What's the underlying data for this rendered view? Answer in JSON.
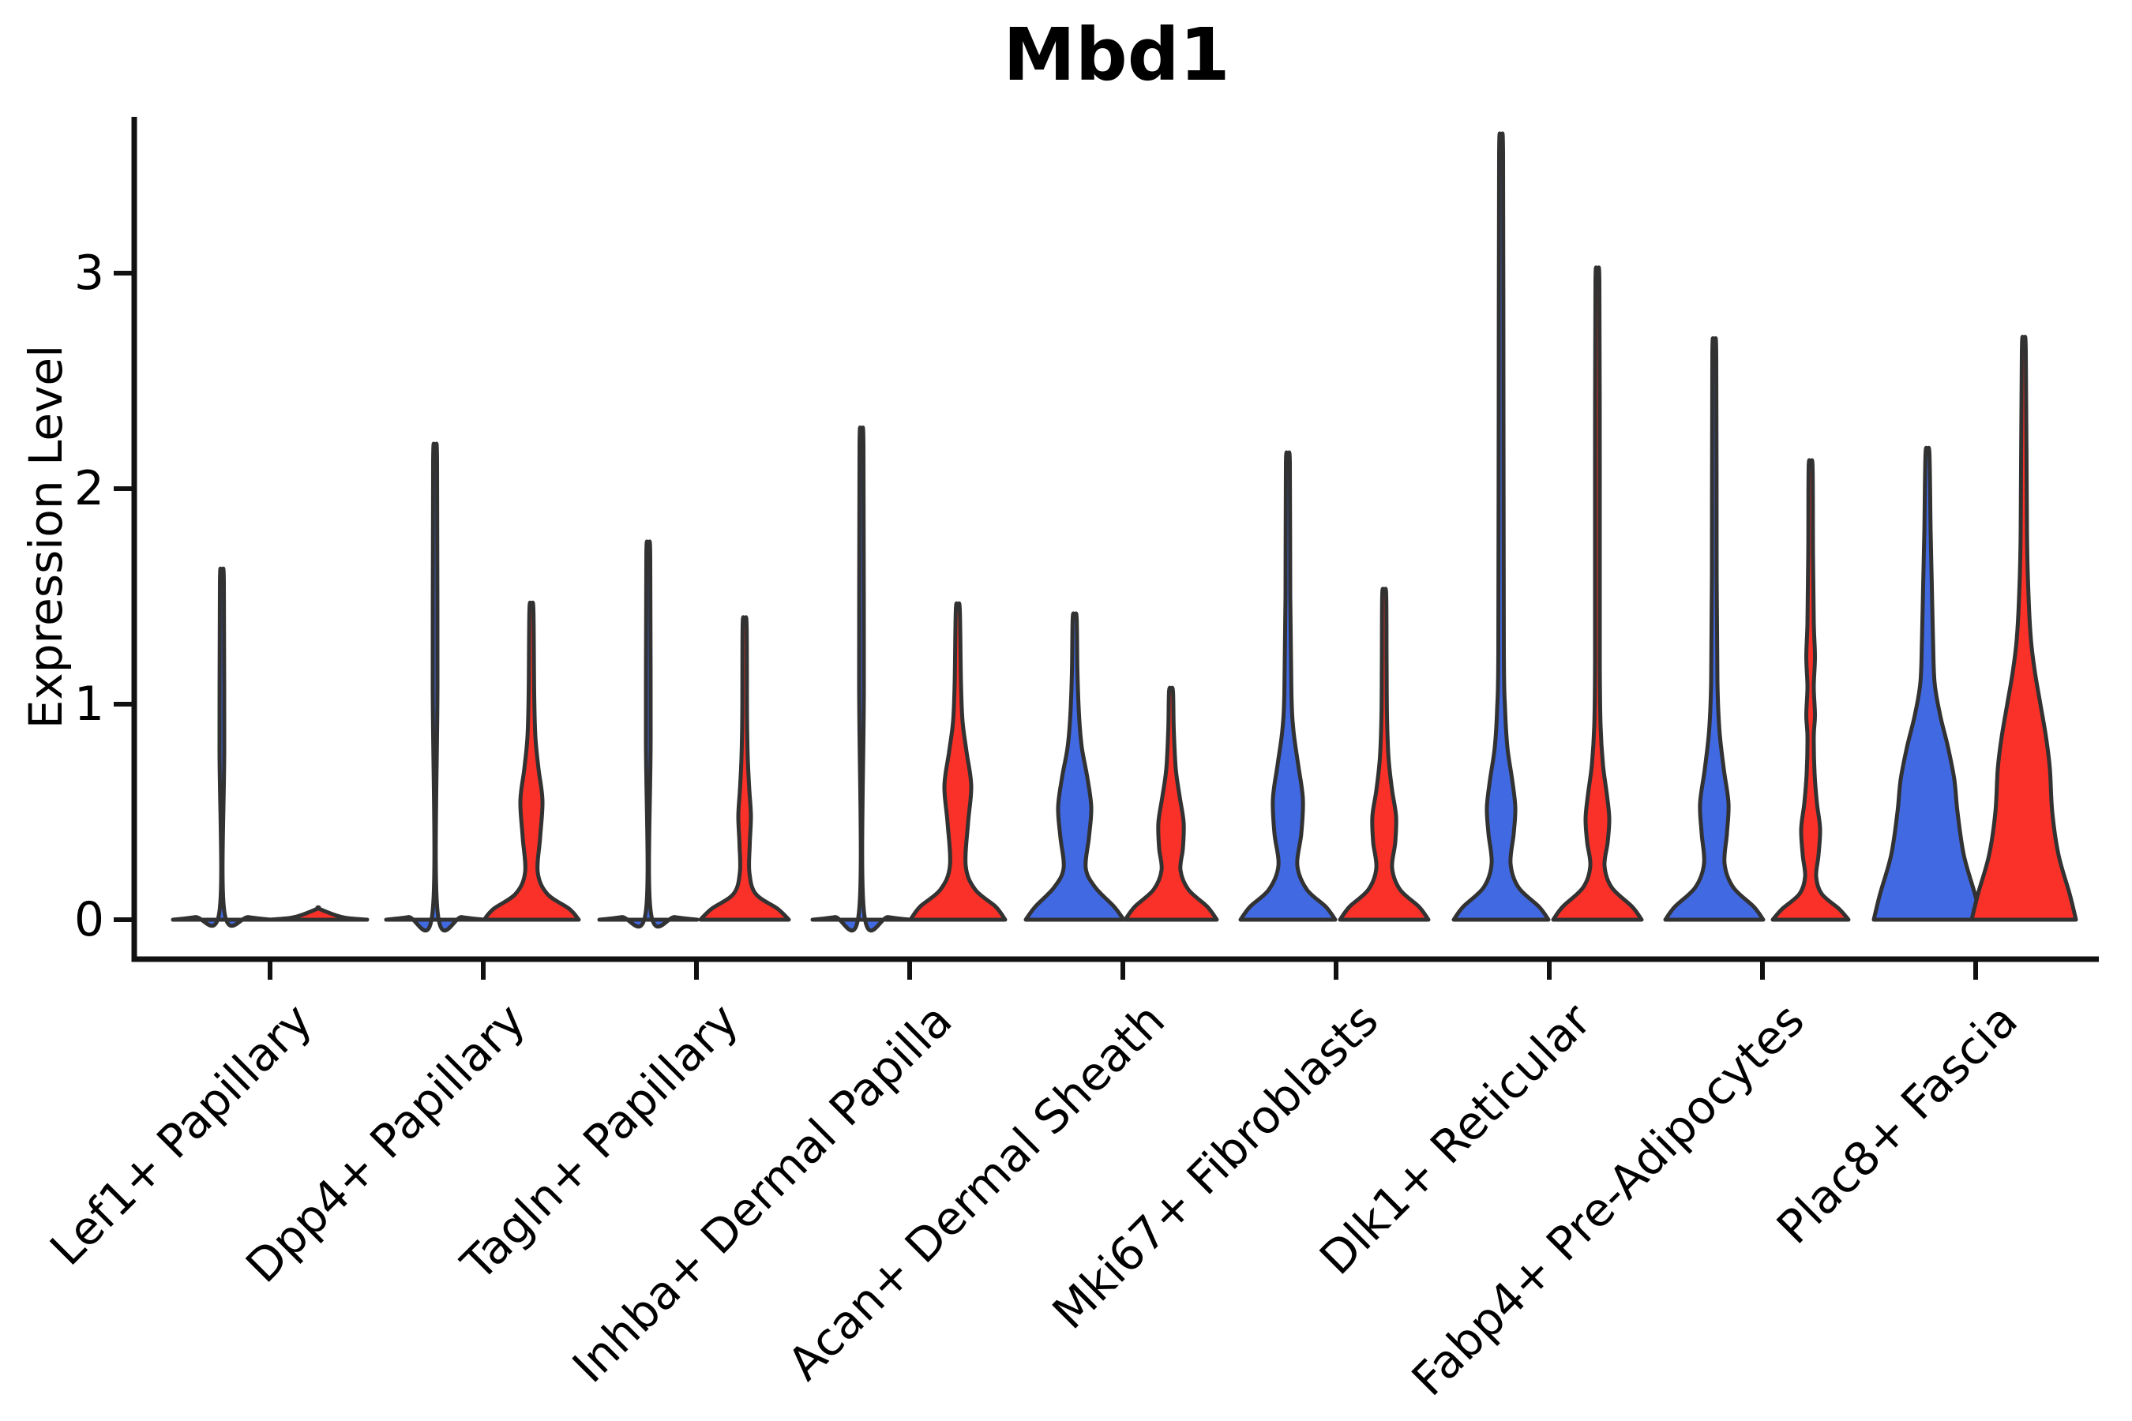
{
  "chart_data": {
    "type": "violin",
    "title": "Mbd1",
    "xlabel": "",
    "ylabel": "Expression Level",
    "yticks": [
      0,
      1,
      2,
      3
    ],
    "ylim": [
      -0.18,
      3.73
    ],
    "grid": false,
    "legend": "none",
    "categories": [
      "Lef1+ Papillary",
      "Dpp4+ Papillary",
      "Tagln+ Papillary",
      "Inhba+ Dermal Papilla",
      "Acan+ Dermal Sheath",
      "Mki67+ Fibroblasts",
      "Dlk1+ Reticular",
      "Fabp4+ Pre-Adipocytes",
      "Plac8+ Fascia"
    ],
    "series": [
      {
        "side": "blue",
        "color": "#4169E1"
      },
      {
        "side": "red",
        "color": "#F93128"
      }
    ],
    "violins": [
      {
        "category": "Lef1+ Papillary",
        "blue": {
          "max": 1.57,
          "profile": [
            [
              0,
              62
            ],
            [
              0.012,
              34
            ],
            [
              0.035,
              3.2
            ],
            [
              0.8,
              3
            ],
            [
              1.57,
              2.5
            ]
          ]
        },
        "red": {
          "max": 0.05,
          "profile": [
            [
              0,
              62
            ],
            [
              0.012,
              30
            ],
            [
              0.05,
              1.5
            ]
          ]
        }
      },
      {
        "category": "Dpp4+ Papillary",
        "blue": {
          "max": 2.13,
          "profile": [
            [
              0,
              62
            ],
            [
              0.012,
              34
            ],
            [
              0.035,
              3.2
            ],
            [
              1.1,
              3
            ],
            [
              2.13,
              2.5
            ]
          ]
        },
        "red": {
          "max": 1.44,
          "profile": [
            [
              0,
              60
            ],
            [
              0.05,
              48
            ],
            [
              0.12,
              20
            ],
            [
              0.22,
              8
            ],
            [
              0.38,
              11
            ],
            [
              0.55,
              14
            ],
            [
              0.7,
              9
            ],
            [
              0.85,
              5
            ],
            [
              1.05,
              3.5
            ],
            [
              1.44,
              2.5
            ]
          ]
        }
      },
      {
        "category": "Tagln+ Papillary",
        "blue": {
          "max": 1.69,
          "profile": [
            [
              0,
              62
            ],
            [
              0.012,
              34
            ],
            [
              0.035,
              3.2
            ],
            [
              0.85,
              3
            ],
            [
              1.69,
              2.5
            ]
          ]
        },
        "red": {
          "max": 1.37,
          "profile": [
            [
              0,
              56
            ],
            [
              0.05,
              42
            ],
            [
              0.12,
              14
            ],
            [
              0.22,
              6
            ],
            [
              0.35,
              6.5
            ],
            [
              0.48,
              8
            ],
            [
              0.6,
              6
            ],
            [
              0.75,
              4
            ],
            [
              0.95,
              3
            ],
            [
              1.37,
              2.5
            ]
          ]
        }
      },
      {
        "category": "Inhba+ Dermal Papilla",
        "blue": {
          "max": 2.2,
          "profile": [
            [
              0,
              62
            ],
            [
              0.012,
              34
            ],
            [
              0.035,
              3.2
            ],
            [
              1.1,
              3
            ],
            [
              2.2,
              2.5
            ]
          ]
        },
        "red": {
          "max": 1.44,
          "profile": [
            [
              0,
              60
            ],
            [
              0.06,
              48
            ],
            [
              0.14,
              22
            ],
            [
              0.25,
              10
            ],
            [
              0.45,
              13
            ],
            [
              0.62,
              17
            ],
            [
              0.78,
              11
            ],
            [
              0.92,
              6
            ],
            [
              1.1,
              4
            ],
            [
              1.44,
              2.5
            ]
          ]
        }
      },
      {
        "category": "Acan+ Dermal Sheath",
        "blue": {
          "max": 1.4,
          "profile": [
            [
              0,
              62
            ],
            [
              0.06,
              50
            ],
            [
              0.15,
              26
            ],
            [
              0.24,
              14
            ],
            [
              0.38,
              18
            ],
            [
              0.52,
              21
            ],
            [
              0.66,
              16
            ],
            [
              0.8,
              9
            ],
            [
              0.95,
              5.5
            ],
            [
              1.15,
              3.5
            ],
            [
              1.4,
              2.5
            ]
          ]
        },
        "red": {
          "max": 1.06,
          "profile": [
            [
              0,
              58
            ],
            [
              0.06,
              46
            ],
            [
              0.14,
              22
            ],
            [
              0.23,
              12
            ],
            [
              0.33,
              15
            ],
            [
              0.45,
              16
            ],
            [
              0.57,
              11
            ],
            [
              0.7,
              6
            ],
            [
              0.88,
              3.5
            ],
            [
              1.06,
              2.5
            ]
          ]
        }
      },
      {
        "category": "Mki67+ Fibroblasts",
        "blue": {
          "max": 2.12,
          "profile": [
            [
              0,
              60
            ],
            [
              0.06,
              48
            ],
            [
              0.14,
              24
            ],
            [
              0.25,
              12
            ],
            [
              0.4,
              17
            ],
            [
              0.56,
              19
            ],
            [
              0.72,
              13
            ],
            [
              0.88,
              7
            ],
            [
              1.05,
              4.5
            ],
            [
              1.5,
              3
            ],
            [
              2.12,
              2.5
            ]
          ]
        },
        "red": {
          "max": 1.51,
          "profile": [
            [
              0,
              56
            ],
            [
              0.06,
              44
            ],
            [
              0.14,
              20
            ],
            [
              0.24,
              10
            ],
            [
              0.36,
              14
            ],
            [
              0.48,
              15
            ],
            [
              0.6,
              10
            ],
            [
              0.75,
              5.5
            ],
            [
              0.95,
              3.5
            ],
            [
              1.2,
              3
            ],
            [
              1.51,
              2.5
            ]
          ]
        }
      },
      {
        "category": "Dlk1+ Reticular",
        "blue": {
          "max": 3.56,
          "profile": [
            [
              0,
              60
            ],
            [
              0.06,
              48
            ],
            [
              0.15,
              22
            ],
            [
              0.26,
              12
            ],
            [
              0.4,
              16
            ],
            [
              0.52,
              18
            ],
            [
              0.65,
              14
            ],
            [
              0.8,
              8
            ],
            [
              0.98,
              5
            ],
            [
              1.25,
              3.5
            ],
            [
              2.4,
              3
            ],
            [
              3.56,
              2.5
            ]
          ]
        },
        "red": {
          "max": 2.96,
          "profile": [
            [
              0,
              56
            ],
            [
              0.06,
              44
            ],
            [
              0.15,
              18
            ],
            [
              0.25,
              9
            ],
            [
              0.36,
              13
            ],
            [
              0.47,
              15
            ],
            [
              0.58,
              12
            ],
            [
              0.72,
              7
            ],
            [
              0.9,
              4
            ],
            [
              1.2,
              3
            ],
            [
              2.1,
              3
            ],
            [
              2.96,
              2.5
            ]
          ]
        }
      },
      {
        "category": "Fabp4+ Pre-Adipocytes",
        "blue": {
          "max": 2.62,
          "profile": [
            [
              0,
              62
            ],
            [
              0.06,
              50
            ],
            [
              0.15,
              24
            ],
            [
              0.26,
              13
            ],
            [
              0.4,
              16
            ],
            [
              0.54,
              18
            ],
            [
              0.7,
              12
            ],
            [
              0.88,
              6.5
            ],
            [
              1.1,
              4
            ],
            [
              1.6,
              3
            ],
            [
              2.62,
              2.5
            ]
          ]
        },
        "red": {
          "max": 2.1,
          "profile": [
            [
              0,
              48
            ],
            [
              0.05,
              36
            ],
            [
              0.12,
              14
            ],
            [
              0.2,
              7
            ],
            [
              0.3,
              10
            ],
            [
              0.42,
              12
            ],
            [
              0.54,
              8
            ],
            [
              0.68,
              5
            ],
            [
              0.85,
              4
            ],
            [
              0.95,
              5.5
            ],
            [
              1.08,
              4
            ],
            [
              1.22,
              5.5
            ],
            [
              1.38,
              4
            ],
            [
              1.7,
              3
            ],
            [
              2.1,
              2.5
            ]
          ]
        }
      },
      {
        "category": "Plac8+ Fascia",
        "blue": {
          "max": 2.16,
          "profile": [
            [
              0,
              68
            ],
            [
              0.12,
              60
            ],
            [
              0.3,
              46
            ],
            [
              0.5,
              38
            ],
            [
              0.65,
              34
            ],
            [
              0.8,
              26
            ],
            [
              0.95,
              16
            ],
            [
              1.1,
              9
            ],
            [
              1.3,
              7
            ],
            [
              1.55,
              5.5
            ],
            [
              1.8,
              4
            ],
            [
              2.16,
              2.5
            ]
          ]
        },
        "red": {
          "max": 2.64,
          "profile": [
            [
              0,
              66
            ],
            [
              0.12,
              58
            ],
            [
              0.3,
              44
            ],
            [
              0.5,
              36
            ],
            [
              0.7,
              33
            ],
            [
              0.85,
              28
            ],
            [
              1.0,
              21
            ],
            [
              1.15,
              14
            ],
            [
              1.3,
              9
            ],
            [
              1.5,
              6
            ],
            [
              1.8,
              4
            ],
            [
              2.64,
              2.5
            ]
          ]
        }
      }
    ]
  },
  "colors": {
    "background": "#ffffff",
    "axis": "#111111",
    "violin_outline": "#323232",
    "text": "#000000"
  }
}
